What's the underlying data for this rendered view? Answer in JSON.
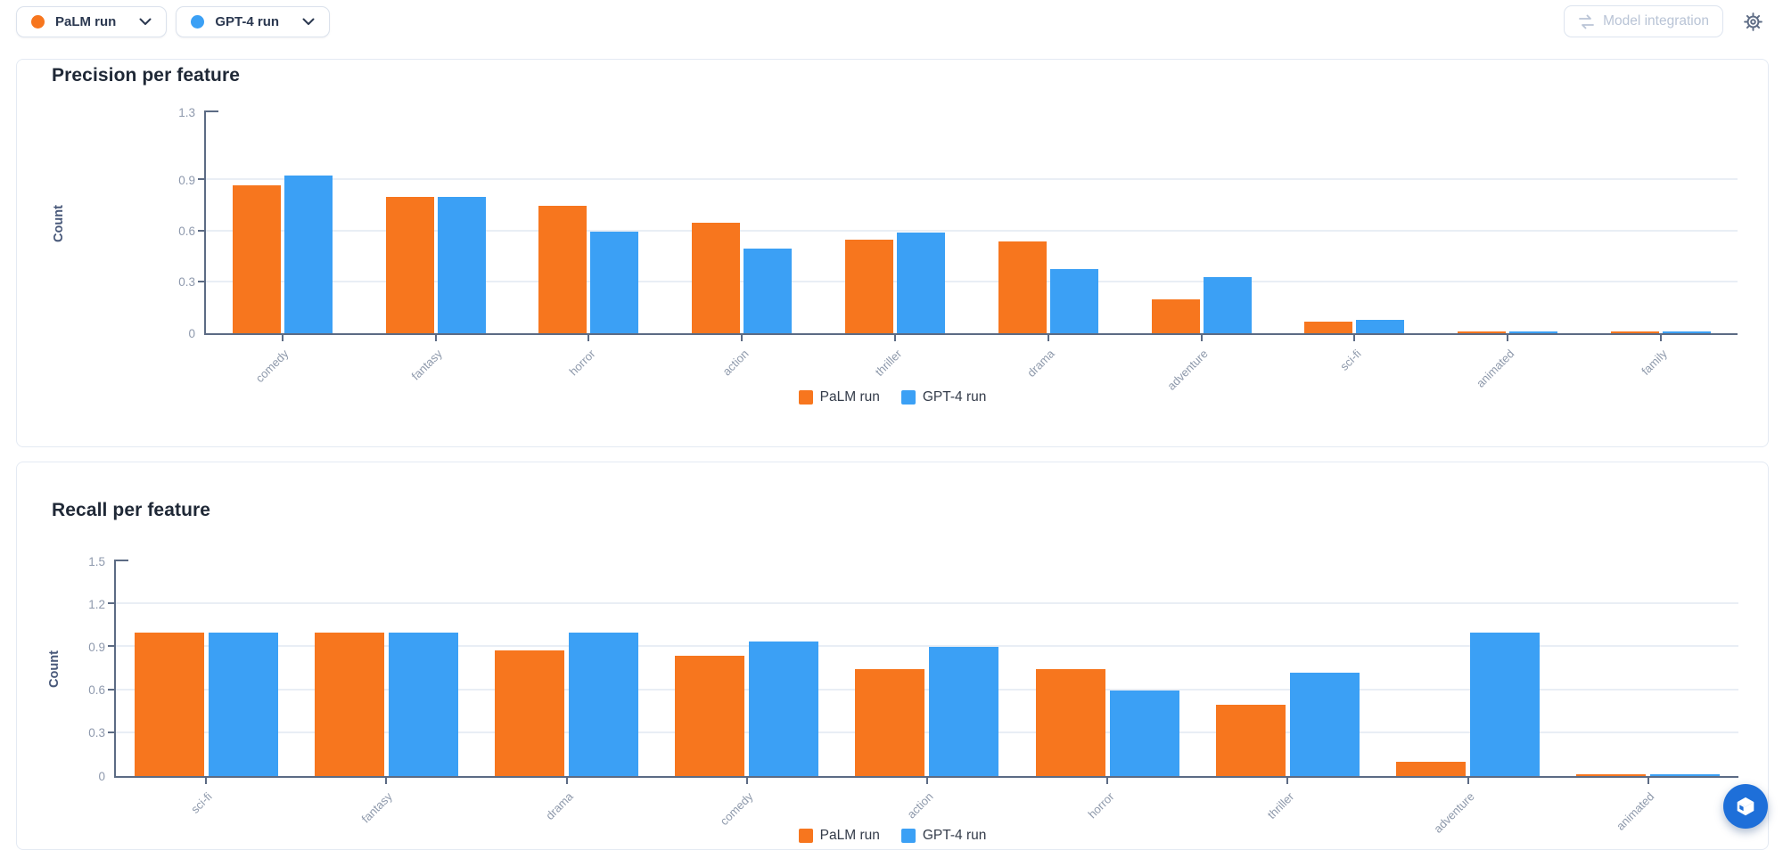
{
  "toolbar": {
    "run_selectors": [
      {
        "label": "PaLM run",
        "dot_color": "#f7761e"
      },
      {
        "label": "GPT-4 run",
        "dot_color": "#3ba0f5"
      }
    ],
    "model_integration_label": "Model integration"
  },
  "icons": {
    "chevron_down": "chevron-down-icon",
    "model_integration": "model-integration-swap-icon",
    "settings": "gear-icon",
    "floating_button": "cube-logo-icon"
  },
  "colors": {
    "series": [
      "#f7761e",
      "#3ba0f5"
    ],
    "axis": "#5c6b84",
    "tick_label": "#8e99ad",
    "grid": "#e9eef5",
    "title": "#1f2836",
    "fab": "#1e6fd9"
  },
  "chart_data": [
    {
      "type": "bar",
      "title": "Precision per feature",
      "xlabel": "",
      "ylabel": "Count",
      "ylim": [
        0,
        1.3
      ],
      "yticks": [
        0,
        0.3,
        0.6,
        0.9,
        1.3
      ],
      "grid": true,
      "legend_position": "bottom",
      "categories": [
        "comedy",
        "fantasy",
        "horror",
        "action",
        "thriller",
        "drama",
        "adventure",
        "sci-fi",
        "animated",
        "family"
      ],
      "series": [
        {
          "name": "PaLM run",
          "values": [
            0.87,
            0.8,
            0.75,
            0.65,
            0.55,
            0.54,
            0.2,
            0.07,
            0.01,
            0.01
          ]
        },
        {
          "name": "GPT-4 run",
          "values": [
            0.93,
            0.8,
            0.6,
            0.5,
            0.59,
            0.38,
            0.33,
            0.08,
            0.01,
            0.01
          ]
        }
      ]
    },
    {
      "type": "bar",
      "title": "Recall per feature",
      "xlabel": "",
      "ylabel": "Count",
      "ylim": [
        0,
        1.5
      ],
      "yticks": [
        0,
        0.3,
        0.6,
        0.9,
        1.2,
        1.5
      ],
      "grid": true,
      "legend_position": "bottom",
      "categories": [
        "sci-fi",
        "fantasy",
        "drama",
        "comedy",
        "action",
        "horror",
        "thriller",
        "adventure",
        "animated"
      ],
      "series": [
        {
          "name": "PaLM run",
          "values": [
            1.0,
            1.0,
            0.88,
            0.84,
            0.75,
            0.75,
            0.5,
            0.1,
            0.01
          ]
        },
        {
          "name": "GPT-4 run",
          "values": [
            1.0,
            1.0,
            1.0,
            0.94,
            0.9,
            0.6,
            0.72,
            1.0,
            0.01
          ]
        }
      ]
    }
  ]
}
